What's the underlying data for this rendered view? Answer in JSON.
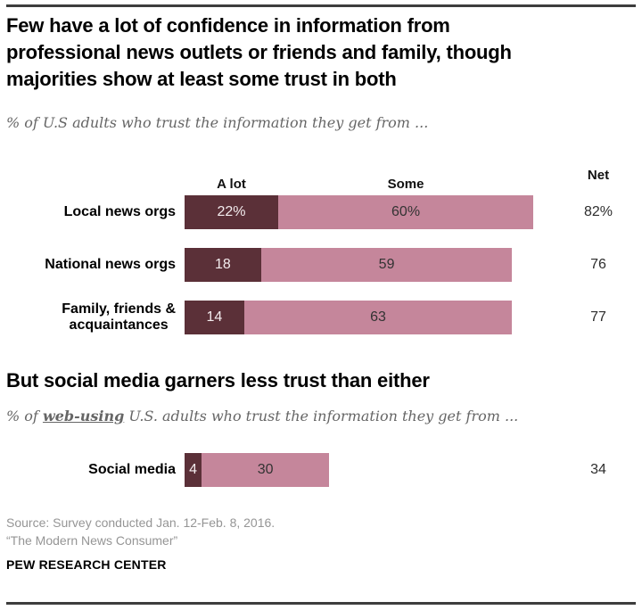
{
  "page": {
    "background": "#ffffff",
    "rule_color": "#3d3d3d"
  },
  "colors": {
    "a_lot": "#5b3038",
    "some": "#c5869b",
    "value_on_a_lot": "#f3ecee",
    "value_on_some": "#333333"
  },
  "chart_data": [
    {
      "type": "bar",
      "stacked": true,
      "orientation": "horizontal",
      "unit": "%",
      "xlim": [
        0,
        100
      ],
      "grid": false,
      "title": "Few have a lot of confidence in information from professional news outlets or friends and family, though majorities show at least some trust in both",
      "title_lines": [
        "Few have a lot of confidence in information from",
        "professional news outlets or friends and family, though",
        "majorities show at least some trust in both"
      ],
      "subtitle": "% of U.S adults who trust the information they get from ...",
      "legend": {
        "a_lot": "A lot",
        "some": "Some",
        "net": "Net"
      },
      "categories": [
        "Local news orgs",
        "National news orgs",
        "Family, friends & acquaintances"
      ],
      "series": [
        {
          "name": "A lot",
          "values": [
            22,
            18,
            14
          ]
        },
        {
          "name": "Some",
          "values": [
            60,
            59,
            63
          ]
        }
      ],
      "net": [
        82,
        76,
        77
      ],
      "rows": [
        {
          "category": [
            "Local news orgs"
          ],
          "a_lot": 22,
          "some": 60,
          "net": 82,
          "a_lot_label": "22%",
          "some_label": "60%",
          "net_label": "82%"
        },
        {
          "category": [
            "National news orgs"
          ],
          "a_lot": 18,
          "some": 59,
          "net": 76,
          "a_lot_label": "18",
          "some_label": "59",
          "net_label": "76"
        },
        {
          "category": [
            "Family, friends &",
            "acquaintances"
          ],
          "a_lot": 14,
          "some": 63,
          "net": 77,
          "a_lot_label": "14",
          "some_label": "63",
          "net_label": "77"
        }
      ]
    },
    {
      "type": "bar",
      "stacked": true,
      "orientation": "horizontal",
      "unit": "%",
      "xlim": [
        0,
        100
      ],
      "grid": false,
      "title": "But social media garners less trust than either",
      "subtitle": "% of web-using U.S. adults who trust the information they get from ...",
      "subtitle_parts": {
        "prefix": "% of ",
        "emphasis": "web-using",
        "suffix": " U.S. adults who trust the information they get from ..."
      },
      "categories": [
        "Social media"
      ],
      "series": [
        {
          "name": "A lot",
          "values": [
            4
          ]
        },
        {
          "name": "Some",
          "values": [
            30
          ]
        }
      ],
      "net": [
        34
      ],
      "rows": [
        {
          "category": [
            "Social media"
          ],
          "a_lot": 4,
          "some": 30,
          "net": 34,
          "a_lot_label": "4",
          "some_label": "30",
          "net_label": "34"
        }
      ]
    }
  ],
  "footer": {
    "source_line1": "Source: Survey conducted Jan. 12-Feb. 8, 2016.",
    "source_line2": "“The Modern News Consumer”",
    "brand": "PEW RESEARCH CENTER"
  }
}
